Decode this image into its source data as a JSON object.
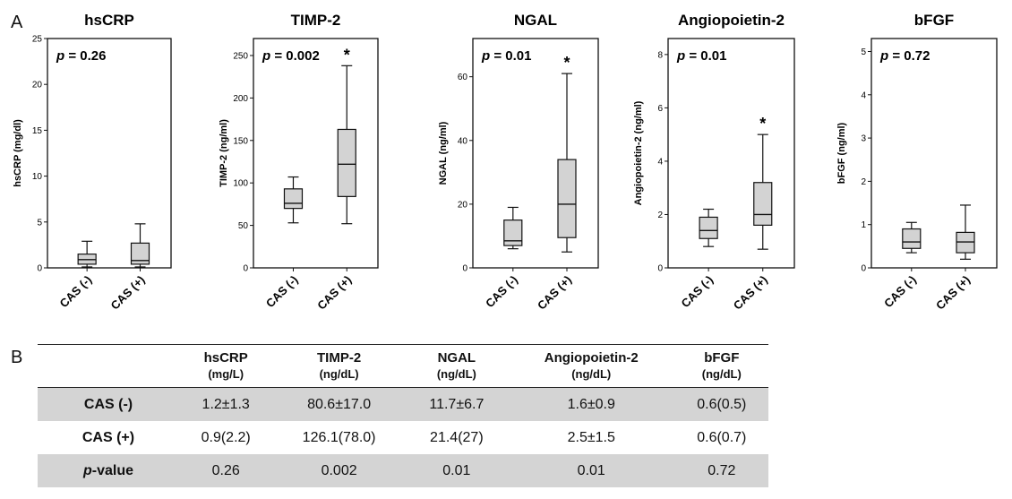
{
  "panel_a_label": "A",
  "panel_b_label": "B",
  "chart_data": [
    {
      "type": "box",
      "title": "hsCRP",
      "ylabel": "hsCRP (mg/dl)",
      "xlabel": "",
      "ylim": [
        0,
        25
      ],
      "yticks": [
        0,
        5,
        10,
        15,
        20,
        25
      ],
      "p_annotation": "p = 0.26",
      "categories": [
        "CAS (-)",
        "CAS (+)"
      ],
      "boxes": [
        {
          "min": 0.1,
          "q1": 0.4,
          "median": 0.9,
          "q3": 1.5,
          "max": 2.9
        },
        {
          "min": 0.1,
          "q1": 0.4,
          "median": 0.8,
          "q3": 2.7,
          "max": 4.8
        }
      ],
      "significant": [
        false,
        false
      ]
    },
    {
      "type": "box",
      "title": "TIMP-2",
      "ylabel": "TIMP-2 (ng/ml)",
      "xlabel": "",
      "ylim": [
        0,
        270
      ],
      "yticks": [
        0,
        50,
        100,
        150,
        200,
        250
      ],
      "p_annotation": "p = 0.002",
      "categories": [
        "CAS (-)",
        "CAS (+)"
      ],
      "boxes": [
        {
          "min": 53,
          "q1": 70,
          "median": 76,
          "q3": 93,
          "max": 107
        },
        {
          "min": 52,
          "q1": 84,
          "median": 122,
          "q3": 163,
          "max": 238
        }
      ],
      "significant": [
        false,
        true
      ]
    },
    {
      "type": "box",
      "title": "NGAL",
      "ylabel": "NGAL (ng/ml)",
      "xlabel": "",
      "ylim": [
        0,
        72
      ],
      "yticks": [
        0,
        20,
        40,
        60
      ],
      "p_annotation": "p = 0.01",
      "categories": [
        "CAS (-)",
        "CAS (+)"
      ],
      "boxes": [
        {
          "min": 6,
          "q1": 7,
          "median": 8.5,
          "q3": 15,
          "max": 19
        },
        {
          "min": 5,
          "q1": 9.5,
          "median": 20,
          "q3": 34,
          "max": 61
        }
      ],
      "significant": [
        false,
        true
      ]
    },
    {
      "type": "box",
      "title": "Angiopoietin-2",
      "ylabel": "Angiopoietin-2 (ng/ml)",
      "xlabel": "",
      "ylim": [
        0,
        8.6
      ],
      "yticks": [
        0,
        2,
        4,
        6,
        8
      ],
      "p_annotation": "p = 0.01",
      "categories": [
        "CAS (-)",
        "CAS (+)"
      ],
      "boxes": [
        {
          "min": 0.8,
          "q1": 1.1,
          "median": 1.4,
          "q3": 1.9,
          "max": 2.2
        },
        {
          "min": 0.7,
          "q1": 1.6,
          "median": 2.0,
          "q3": 3.2,
          "max": 5.0
        }
      ],
      "significant": [
        false,
        true
      ]
    },
    {
      "type": "box",
      "title": "bFGF",
      "ylabel": "bFGF (ng/ml)",
      "xlabel": "",
      "ylim": [
        0,
        5.3
      ],
      "yticks": [
        0,
        1,
        2,
        3,
        4,
        5
      ],
      "p_annotation": "p = 0.72",
      "categories": [
        "CAS (-)",
        "CAS (+)"
      ],
      "boxes": [
        {
          "min": 0.35,
          "q1": 0.45,
          "median": 0.6,
          "q3": 0.9,
          "max": 1.05
        },
        {
          "min": 0.2,
          "q1": 0.35,
          "median": 0.6,
          "q3": 0.82,
          "max": 1.45
        }
      ],
      "significant": [
        false,
        false
      ]
    }
  ],
  "table": {
    "columns": [
      {
        "name": "",
        "unit": ""
      },
      {
        "name": "hsCRP",
        "unit": "(mg/L)"
      },
      {
        "name": "TIMP-2",
        "unit": "(ng/dL)"
      },
      {
        "name": "NGAL",
        "unit": "(ng/dL)"
      },
      {
        "name": "Angiopoietin-2",
        "unit": "(ng/dL)"
      },
      {
        "name": "bFGF",
        "unit": "(ng/dL)"
      }
    ],
    "rows": [
      {
        "label": "CAS (-)",
        "cells": [
          "1.2±1.3",
          "80.6±17.0",
          "11.7±6.7",
          "1.6±0.9",
          "0.6(0.5)"
        ]
      },
      {
        "label": "CAS (+)",
        "cells": [
          "0.9(2.2)",
          "126.1(78.0)",
          "21.4(27)",
          "2.5±1.5",
          "0.6(0.7)"
        ]
      },
      {
        "label_prefix": "p",
        "label_suffix": "-value",
        "cells": [
          "0.26",
          "0.002",
          "0.01",
          "0.01",
          "0.72"
        ]
      }
    ]
  },
  "colors": {
    "box_fill": "#d3d3d3",
    "line": "#111111",
    "row_shade": "#d4d4d4"
  }
}
